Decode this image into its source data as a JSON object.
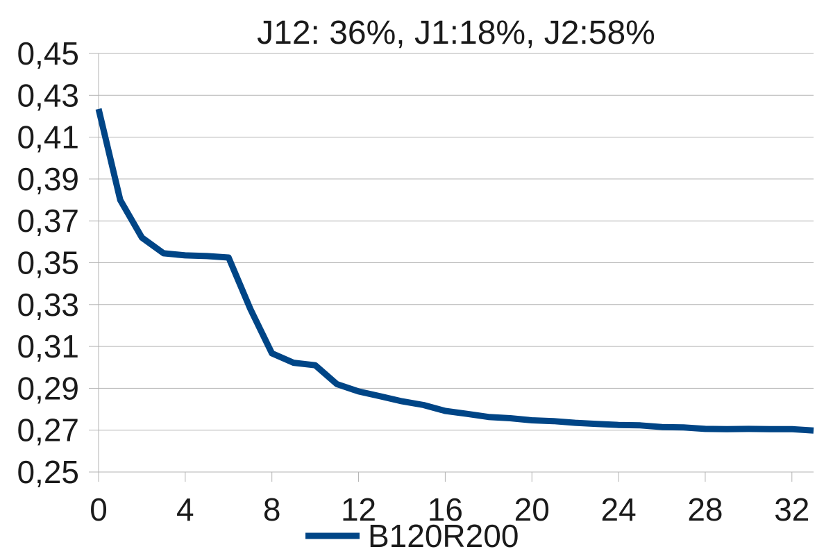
{
  "chart_data": {
    "type": "line",
    "title": "J12: 36%, J1:18%, J2:58%",
    "xlabel": "",
    "ylabel": "",
    "xlim": [
      0,
      33
    ],
    "ylim": [
      0.25,
      0.45
    ],
    "x_ticks": [
      0,
      4,
      8,
      12,
      16,
      20,
      24,
      28,
      32
    ],
    "x_tick_labels": [
      "0",
      "4",
      "8",
      "12",
      "16",
      "20",
      "24",
      "28",
      "32"
    ],
    "y_ticks": [
      0.25,
      0.27,
      0.29,
      0.31,
      0.33,
      0.35,
      0.37,
      0.39,
      0.41,
      0.43,
      0.45
    ],
    "y_tick_labels": [
      "0,25",
      "0,27",
      "0,29",
      "0,31",
      "0,33",
      "0,35",
      "0,37",
      "0,39",
      "0,41",
      "0,43",
      "0,45"
    ],
    "grid": true,
    "legend_position": "bottom",
    "series": [
      {
        "name": "B120R200",
        "color": "#004586",
        "x": [
          0,
          1,
          2,
          3,
          4,
          5,
          6,
          7,
          8,
          9,
          10,
          11,
          12,
          13,
          14,
          15,
          16,
          17,
          18,
          19,
          20,
          21,
          22,
          23,
          24,
          25,
          26,
          27,
          28,
          29,
          30,
          31,
          32,
          33
        ],
        "y": [
          0.4235,
          0.38,
          0.362,
          0.3545,
          0.3535,
          0.3532,
          0.3525,
          0.328,
          0.3067,
          0.3022,
          0.301,
          0.292,
          0.2885,
          0.2862,
          0.2838,
          0.282,
          0.2792,
          0.2778,
          0.2763,
          0.2757,
          0.2747,
          0.2743,
          0.2735,
          0.273,
          0.2725,
          0.2723,
          0.2715,
          0.2713,
          0.2706,
          0.2705,
          0.2706,
          0.2705,
          0.2705,
          0.2698
        ]
      }
    ]
  }
}
